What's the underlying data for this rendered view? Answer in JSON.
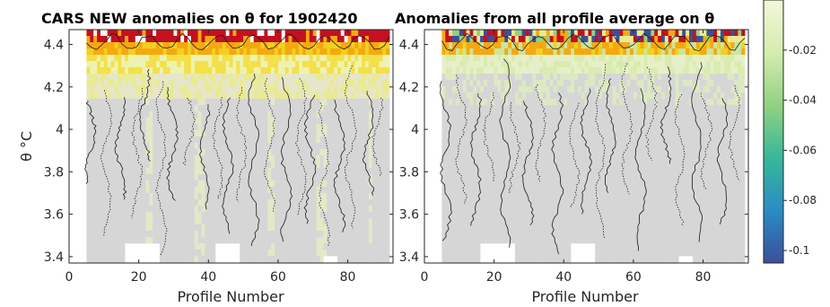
{
  "chart_data": [
    {
      "type": "heatmap",
      "title": "CARS NEW anomalies on θ for 1902420",
      "xlabel": "Profile Number",
      "ylabel": "θ °C",
      "xlim": [
        0,
        93
      ],
      "ylim": [
        3.37,
        4.47
      ],
      "x_ticks": [
        "0",
        "20",
        "40",
        "60",
        "80"
      ],
      "y_ticks": [
        "3.4",
        "3.6",
        "3.8",
        "4",
        "4.2",
        "4.4"
      ],
      "grid": false,
      "contours": "solid and dotted lines"
    },
    {
      "type": "heatmap",
      "title": "Anomalies from all profile average on θ",
      "xlabel": "Profile Number",
      "ylabel": "",
      "xlim": [
        0,
        93
      ],
      "ylim": [
        3.37,
        4.47
      ],
      "x_ticks": [
        "0",
        "20",
        "40",
        "60",
        "80"
      ],
      "y_ticks": [
        "3.4",
        "3.6",
        "3.8",
        "4",
        "4.2",
        "4.4"
      ],
      "grid": false,
      "contours": "solid and dotted lines"
    }
  ],
  "colorbar": {
    "ticks": [
      "-0.02",
      "-0.04",
      "-0.06",
      "-0.08",
      "-0.1"
    ],
    "colors": [
      "#3b4f9a",
      "#2a8cc4",
      "#37b89a",
      "#92d281",
      "#d4ecb0",
      "#f2f8d8"
    ]
  },
  "colors": {
    "missing": "#d6d6d6",
    "high": "#c41020",
    "mid": "#f6a810",
    "low_pos": "#eaea90"
  }
}
